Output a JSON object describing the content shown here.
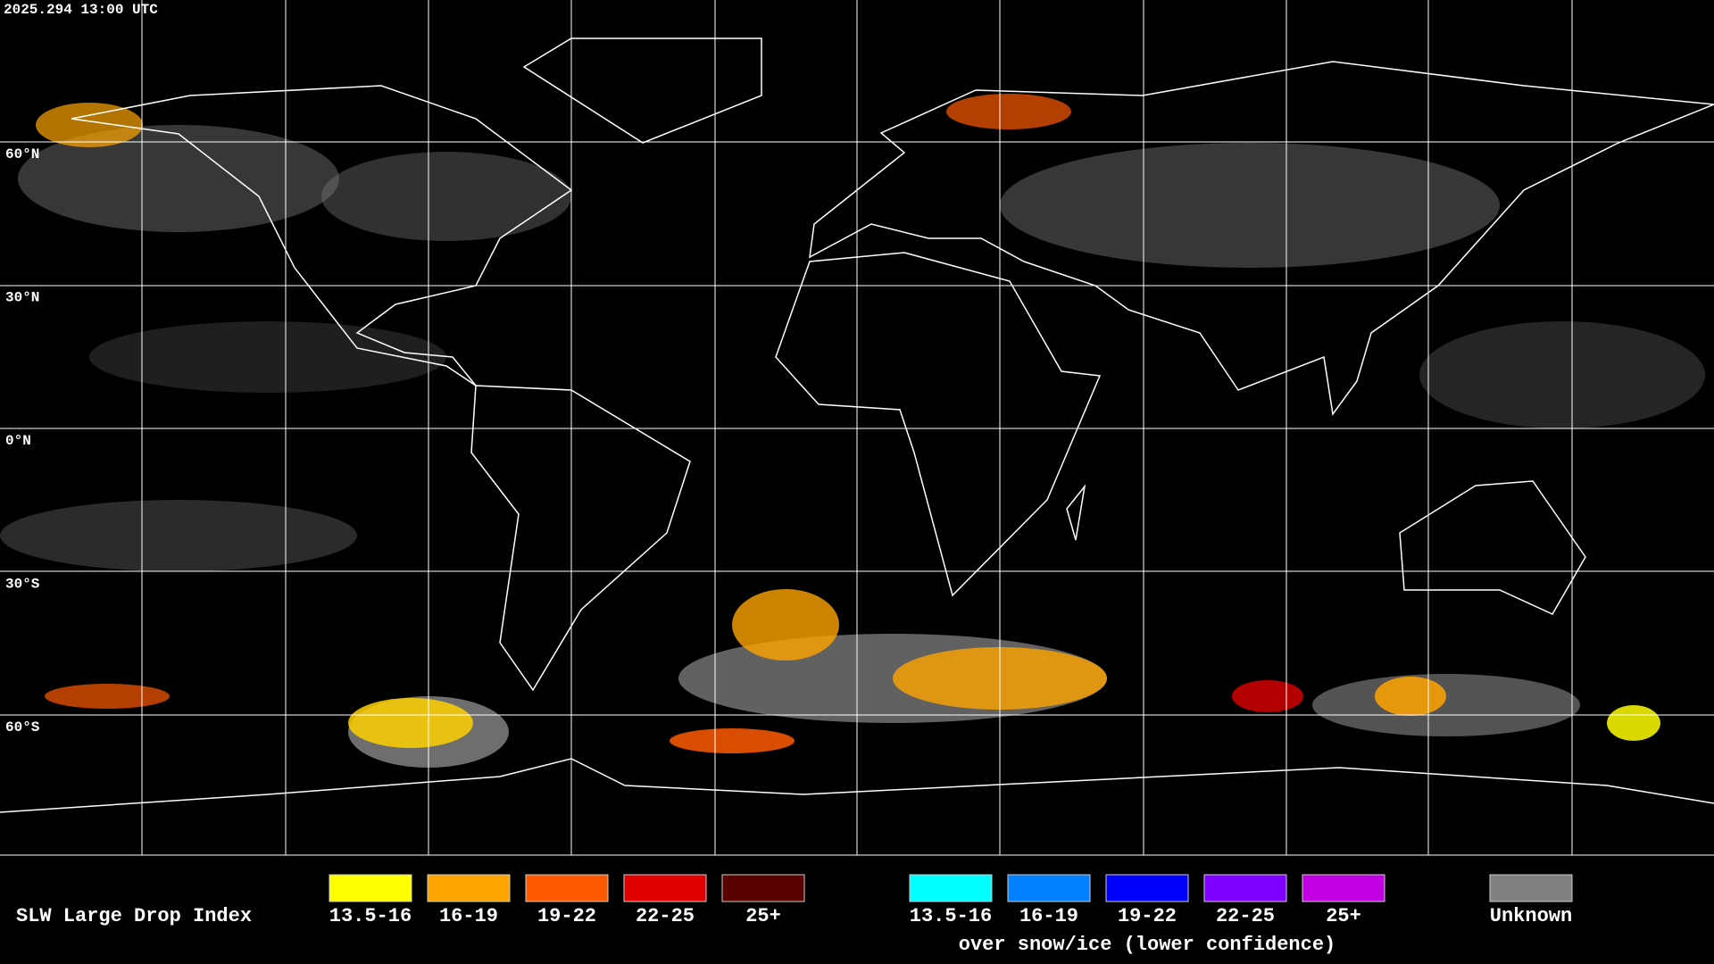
{
  "header": {
    "timestamp": "2025.294 13:00 UTC"
  },
  "map": {
    "lat_labels": [
      "60°N",
      "30°N",
      "0°N",
      "30°S",
      "60°S"
    ]
  },
  "legend": {
    "title": "SLW Large Drop Index",
    "items": [
      {
        "label": "13.5-16",
        "color": "#ffff00"
      },
      {
        "label": "16-19",
        "color": "#ffa500"
      },
      {
        "label": "19-22",
        "color": "#ff5a00"
      },
      {
        "label": "22-25",
        "color": "#e00000"
      },
      {
        "label": "25+",
        "color": "#5a0000"
      }
    ],
    "snow_items": [
      {
        "label": "13.5-16",
        "color": "#00ffff"
      },
      {
        "label": "16-19",
        "color": "#0080ff"
      },
      {
        "label": "19-22",
        "color": "#0000ff"
      },
      {
        "label": "22-25",
        "color": "#8000ff"
      },
      {
        "label": "25+",
        "color": "#c000e0"
      }
    ],
    "snow_note": "over snow/ice (lower confidence)",
    "unknown": {
      "label": "Unknown",
      "color": "#808080"
    }
  }
}
